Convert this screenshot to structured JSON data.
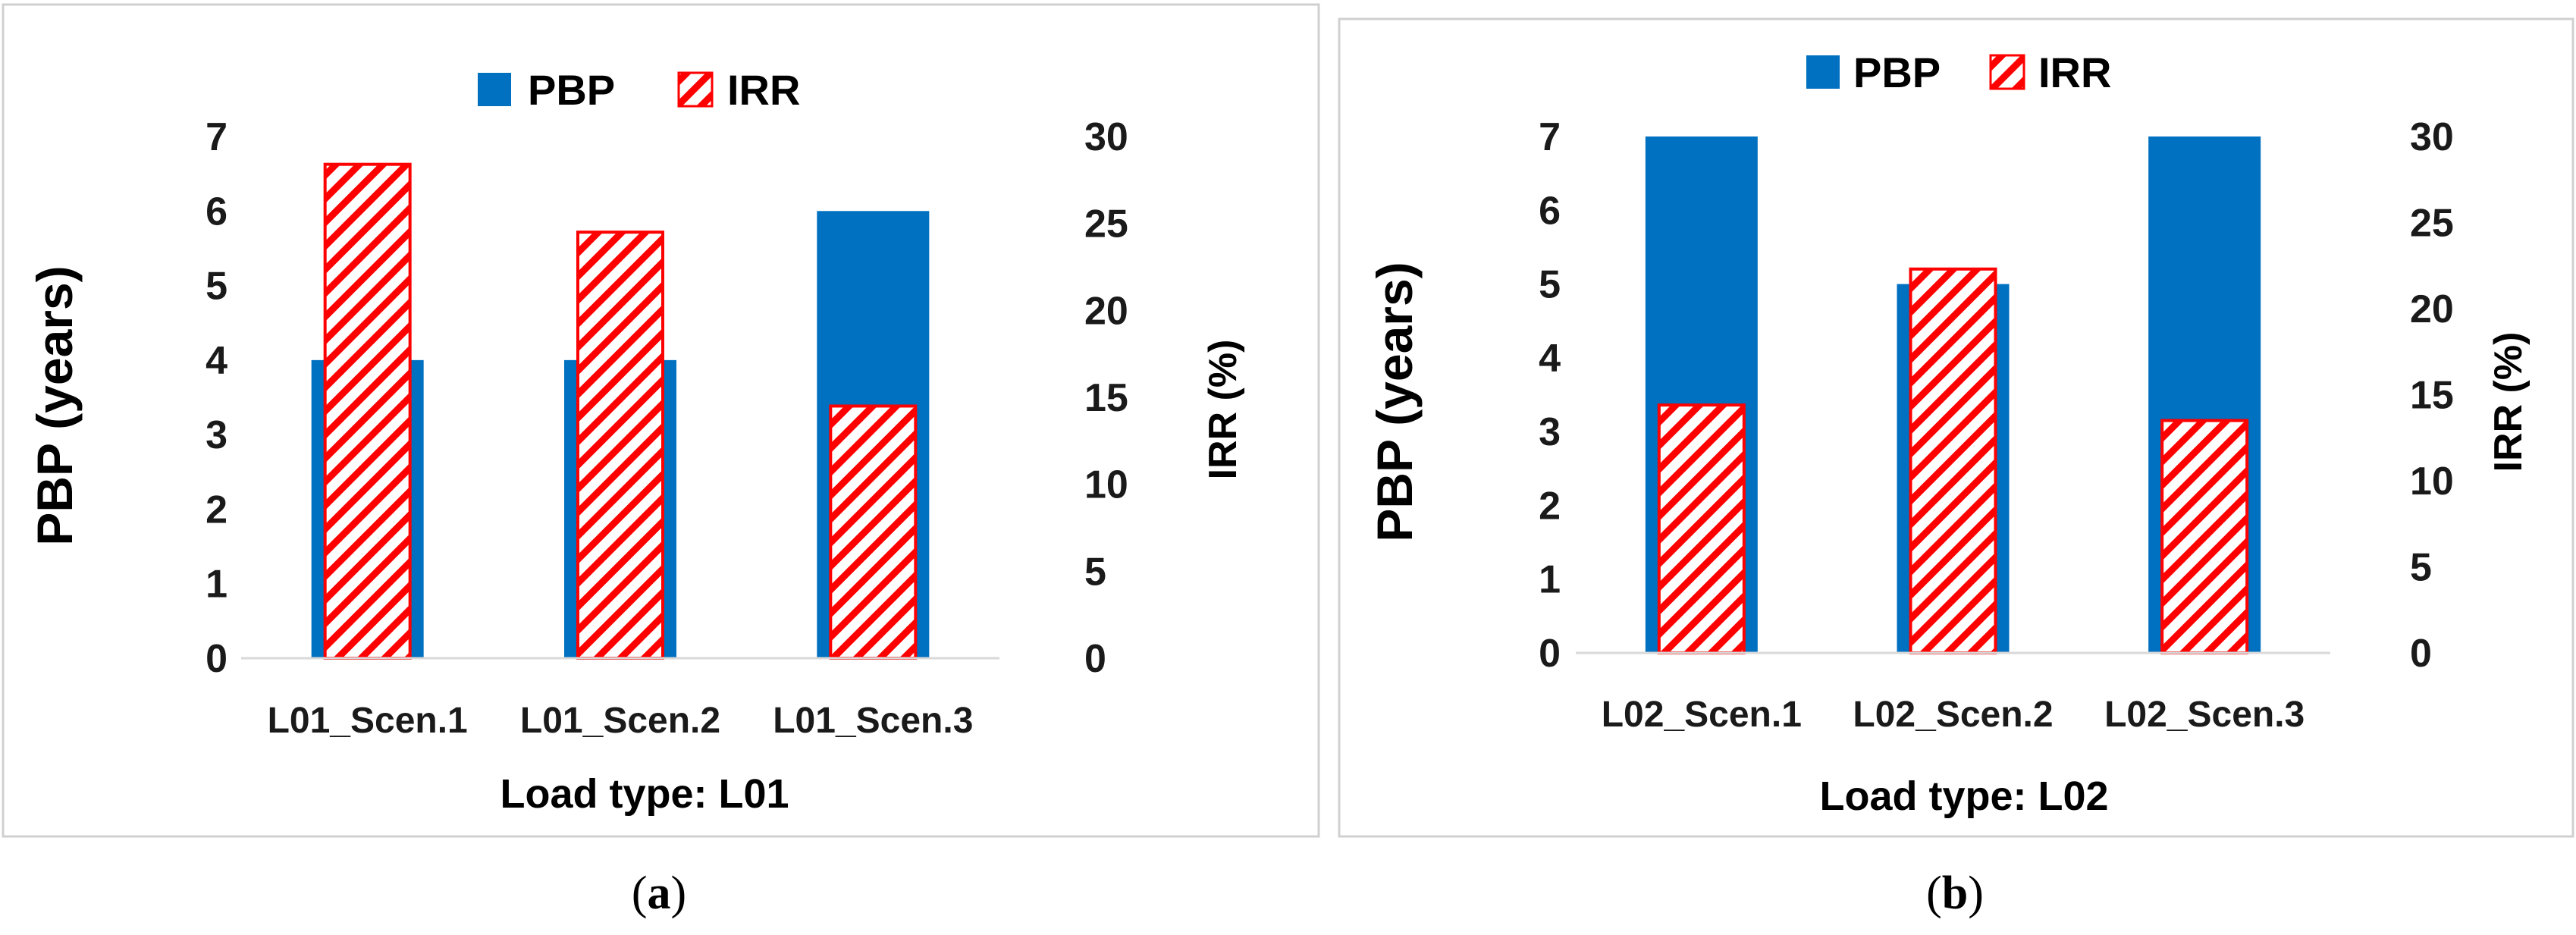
{
  "chart_data": [
    {
      "type": "bar",
      "panel_label": "a",
      "xlabel": "Load type: L01",
      "ylabel": "PBP (years)",
      "y2label": "IRR (%)",
      "ylim": [
        0,
        7
      ],
      "y2lim": [
        0,
        30
      ],
      "yticks": [
        0,
        1,
        2,
        3,
        4,
        5,
        6,
        7
      ],
      "y2ticks": [
        0,
        5,
        10,
        15,
        20,
        25,
        30
      ],
      "categories": [
        "L01_Scen.1",
        "L01_Scen.2",
        "L01_Scen.3"
      ],
      "series": [
        {
          "name": "PBP",
          "axis": "left",
          "color": "#0070C0",
          "pattern": "solid",
          "values": [
            4,
            4,
            6
          ]
        },
        {
          "name": "IRR",
          "axis": "right",
          "color": "#FF0000",
          "pattern": "diagonal-hatch",
          "values": [
            28.4,
            24.5,
            14.5
          ]
        }
      ],
      "legend": "top-center",
      "grid": false
    },
    {
      "type": "bar",
      "panel_label": "b",
      "xlabel": "Load type: L02",
      "ylabel": "PBP (years)",
      "y2label": "IRR (%)",
      "ylim": [
        0,
        7
      ],
      "y2lim": [
        0,
        30
      ],
      "yticks": [
        0,
        1,
        2,
        3,
        4,
        5,
        6,
        7
      ],
      "y2ticks": [
        0,
        5,
        10,
        15,
        20,
        25,
        30
      ],
      "categories": [
        "L02_Scen.1",
        "L02_Scen.2",
        "L02_Scen.3"
      ],
      "series": [
        {
          "name": "PBP",
          "axis": "left",
          "color": "#0070C0",
          "pattern": "solid",
          "values": [
            7,
            5,
            7
          ]
        },
        {
          "name": "IRR",
          "axis": "right",
          "color": "#FF0000",
          "pattern": "diagonal-hatch",
          "values": [
            14.4,
            22.3,
            13.5
          ]
        }
      ],
      "legend": "top-center",
      "grid": false
    }
  ]
}
